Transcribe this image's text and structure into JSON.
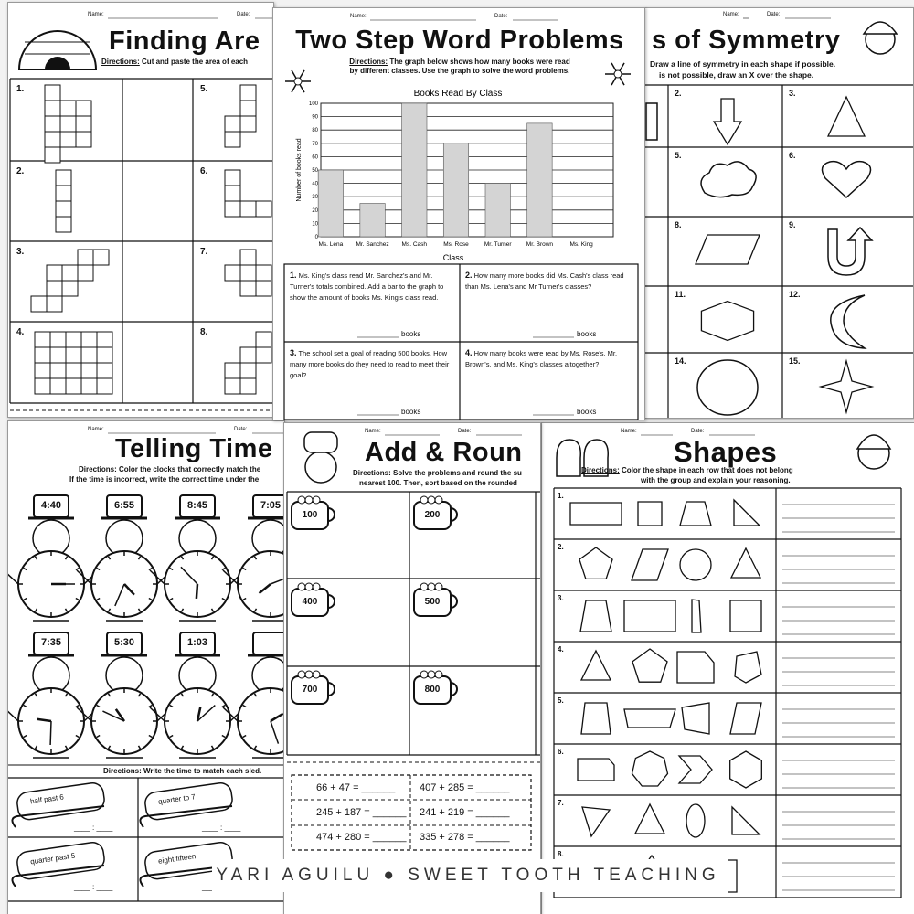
{
  "pages": [
    {
      "name_label": "Name:",
      "date_label": "Date:",
      "title": "Finding Are",
      "directions_label": "Directions:",
      "directions": "Cut and paste the area of each",
      "items": [
        "1.",
        "2.",
        "3.",
        "4.",
        "5.",
        "6.",
        "7.",
        "8."
      ]
    },
    {
      "name_label": "Name:",
      "date_label": "Date:",
      "title": "Two Step Word Problems",
      "directions_label": "Directions:",
      "directions": [
        "The graph below shows how many books were read",
        "by different classes. Use the graph to solve the word problems."
      ],
      "questions": [
        {
          "number": "1.",
          "text": "Ms. King's class read Mr. Sanchez's and Mr. Turner's totals combined. Add a bar to the graph to show the amount of books Ms. King's class read.",
          "answer": "books"
        },
        {
          "number": "2.",
          "text": "How many more books did Ms. Cash's class read than Ms. Lena's and Mr Turner's classes?",
          "answer": "books"
        },
        {
          "number": "3.",
          "text": "The school set a goal of reading 500 books. How many more books do they need to read to meet their goal?",
          "answer": "books"
        },
        {
          "number": "4.",
          "text": "How many books were read by Ms. Rose's, Mr. Brown's, and Ms. King's classes altogether?",
          "answer": "books"
        }
      ]
    },
    {
      "name_label": "Name:",
      "date_label": "Date:",
      "title": "s of Symmetry",
      "directions": [
        "Draw a line of symmetry in each shape if possible.",
        "is not possible, draw an X over the shape."
      ],
      "items": [
        "2.",
        "3.",
        "5.",
        "6.",
        "8.",
        "9.",
        "11.",
        "12.",
        "14.",
        "15."
      ]
    },
    {
      "name_label": "Name:",
      "date_label": "Date:",
      "title": "Telling Time",
      "directions": [
        "Directions: Color the clocks that correctly match the",
        "If the time is incorrect, write the correct time under the"
      ],
      "times": [
        "4:40",
        "6:55",
        "8:45",
        "7:05",
        "7:35",
        "5:30",
        "1:03"
      ],
      "directions_2": "Directions: Write the time to match each sled.",
      "sleds": [
        "half past 6",
        "quarter to 7",
        "quarter past 5",
        "eight fifteen"
      ],
      "answer_blank": "____ : ____"
    },
    {
      "name_label": "Name:",
      "date_label": "Date:",
      "title": "Add & Roun",
      "directions": [
        "Directions: Solve the problems and round the su",
        "nearest 100. Then, sort based on the rounded"
      ],
      "mugs": [
        "100",
        "200",
        "400",
        "500",
        "700",
        "800"
      ],
      "equations": [
        "66 + 47 = ______",
        "407 + 285 = ______",
        "245 + 187 = ______",
        "241 + 219 = ______",
        "474 + 280 = ______",
        "335 + 278 = ______"
      ]
    },
    {
      "name_label": "Name:",
      "date_label": "Date:",
      "title": "Shapes",
      "directions_label": "Directions:",
      "directions": [
        "Color the shape in each row that does not belong",
        "with the group and explain your reasoning."
      ],
      "items": [
        "1.",
        "2.",
        "3.",
        "4.",
        "5.",
        "6.",
        "7.",
        "8."
      ]
    }
  ],
  "chart_data": {
    "type": "bar",
    "title": "Books Read By Class",
    "y_label": "Number of books read",
    "x_label": "Class",
    "categories": [
      "Ms. Lena",
      "Mr. Sanchez",
      "Ms. Cash",
      "Ms. Rose",
      "Mr. Turner",
      "Mr. Brown",
      "Ms. King"
    ],
    "values": [
      50,
      25,
      100,
      70,
      40,
      85,
      null
    ],
    "color": "#d4d4d4",
    "ylim": [
      0,
      100
    ],
    "yticks": [
      0,
      10,
      20,
      30,
      40,
      50,
      60,
      70,
      80,
      90,
      100
    ],
    "grid": true
  },
  "footer": "YARI AGUILU ● SWEET TOOTH TEACHING"
}
